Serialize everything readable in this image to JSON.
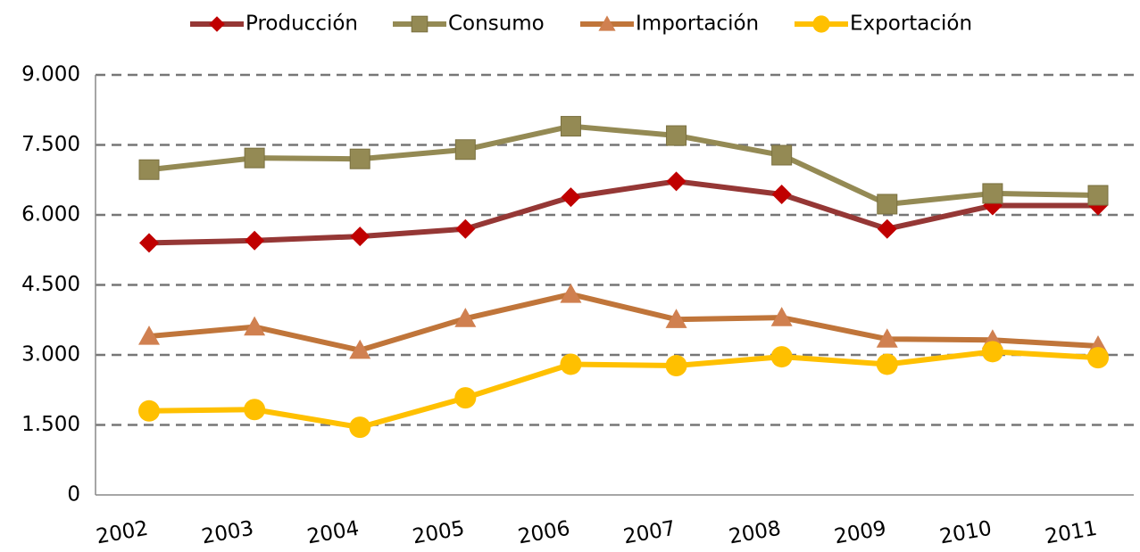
{
  "chart_data": {
    "type": "line",
    "categories": [
      "2002",
      "2003",
      "2004",
      "2005",
      "2006",
      "2007",
      "2008",
      "2009",
      "2010",
      "2011"
    ],
    "series": [
      {
        "name": "Producción",
        "color": "#953735",
        "marker_color": "#c00000",
        "marker": "diamond",
        "values": [
          5400,
          5450,
          5540,
          5700,
          6380,
          6720,
          6440,
          5700,
          6200,
          6200
        ]
      },
      {
        "name": "Consumo",
        "color": "#948a54",
        "marker_color": "#948a54",
        "marker": "square",
        "values": [
          6970,
          7220,
          7200,
          7400,
          7900,
          7700,
          7280,
          6230,
          6460,
          6420
        ]
      },
      {
        "name": "Importación",
        "color": "#c0753a",
        "marker_color": "#d08050",
        "marker": "triangle",
        "values": [
          3400,
          3600,
          3100,
          3780,
          4300,
          3760,
          3800,
          3340,
          3320,
          3190
        ]
      },
      {
        "name": "Exportación",
        "color": "#ffc000",
        "marker_color": "#ffc000",
        "marker": "circle",
        "values": [
          1800,
          1830,
          1450,
          2080,
          2800,
          2770,
          2960,
          2800,
          3070,
          2940
        ]
      }
    ],
    "ylim": [
      0,
      9000
    ],
    "yticks": [
      0,
      {
        "value": 1500,
        "label": "1.500"
      },
      {
        "value": 3000,
        "label": "3.000"
      },
      {
        "value": 4500,
        "label": "4.500"
      },
      {
        "value": 6000,
        "label": "6.000"
      },
      {
        "value": 7500,
        "label": "7.500"
      },
      {
        "value": 9000,
        "label": "9.000"
      }
    ],
    "grid": true,
    "legend": "top"
  }
}
